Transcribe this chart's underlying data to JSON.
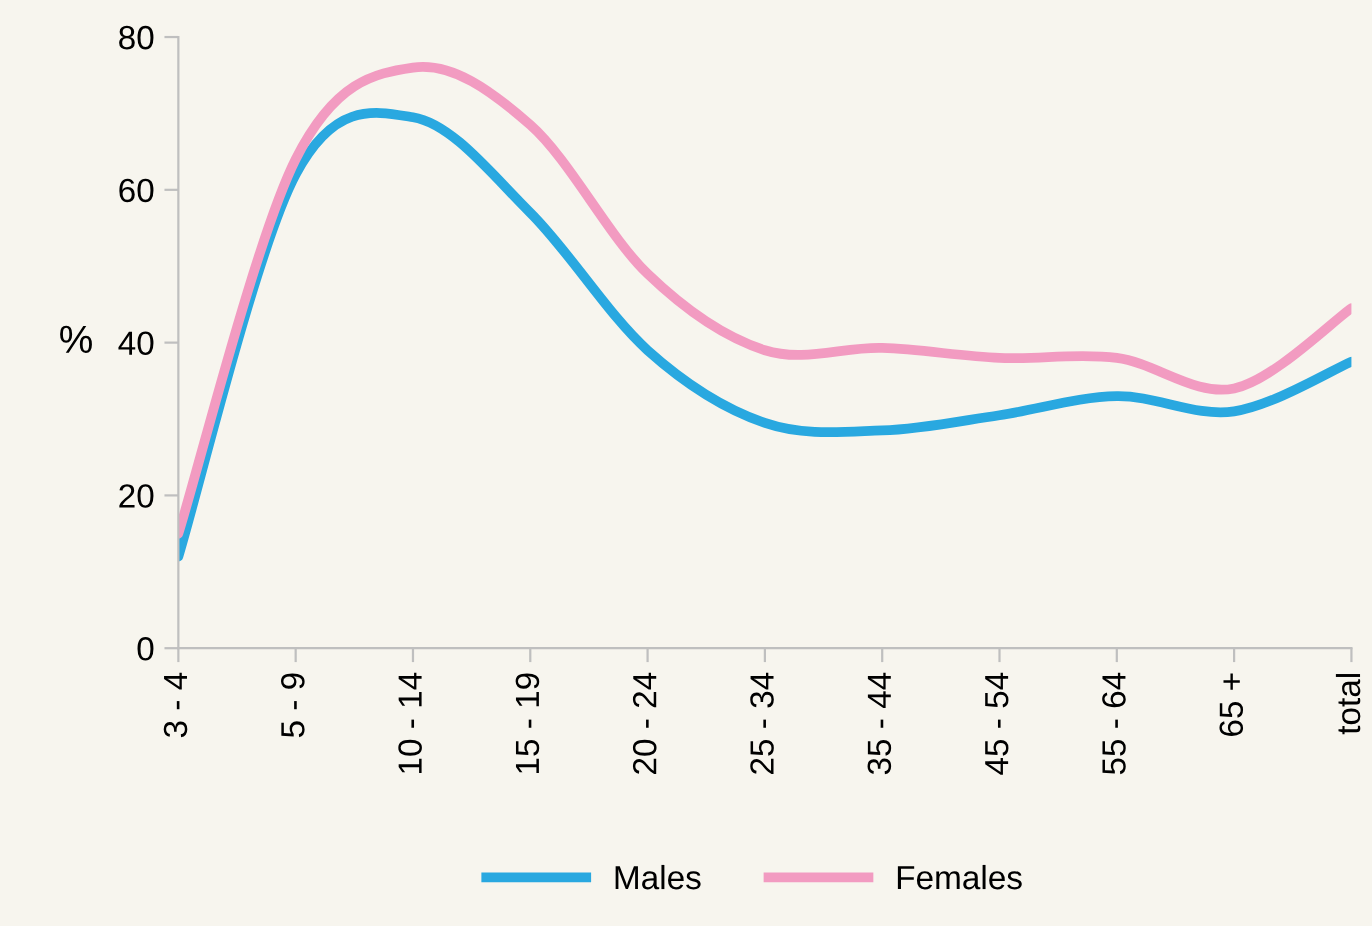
{
  "chart_data": {
    "type": "line",
    "ylabel": "%",
    "categories": [
      "3 - 4",
      "5 - 9",
      "10 - 14",
      "15 - 19",
      "20 - 24",
      "25 - 34",
      "35 - 44",
      "45 - 54",
      "55 - 64",
      "65 +",
      "total"
    ],
    "series": [
      {
        "name": "Males",
        "color": "#29a8e0",
        "values": [
          12,
          62,
          69.5,
          57,
          39,
          29.5,
          28.5,
          30.5,
          33,
          31,
          37.5
        ]
      },
      {
        "name": "Females",
        "color": "#f29bc1",
        "values": [
          15,
          64,
          76,
          68.5,
          49,
          39,
          39.3,
          38,
          38,
          34,
          44.5
        ]
      }
    ],
    "ylim": [
      0,
      80
    ],
    "yticks": [
      0,
      20,
      40,
      60,
      80
    ],
    "grid": false,
    "legend": "bottom",
    "marker": "none",
    "line_style": "solid"
  }
}
